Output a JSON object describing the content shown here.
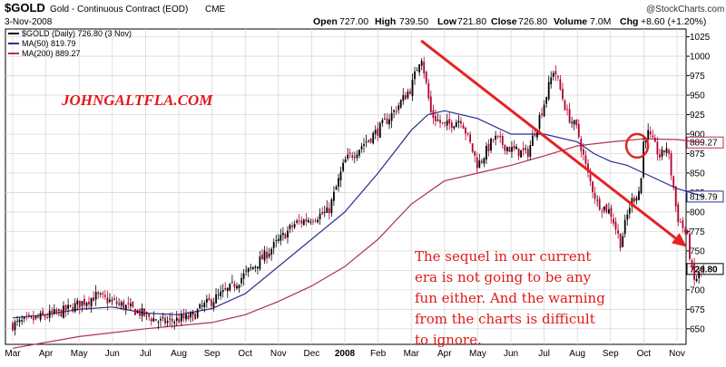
{
  "header": {
    "symbol": "$GOLD",
    "name": "Gold - Continuous Contract (EOD)",
    "exchange": "CME",
    "date": "3-Nov-2008",
    "credit": "@StockCharts.com",
    "ohlc": {
      "open_label": "Open",
      "open": "727.00",
      "high_label": "High",
      "high": "739.50",
      "low_label": "Low",
      "low": "721.80",
      "close_label": "Close",
      "close": "726.80",
      "volume_label": "Volume",
      "volume": "7.0M",
      "chg_label": "Chg",
      "chg": "+8.60 (+1.20%)"
    }
  },
  "legend": [
    {
      "label": "$GOLD (Daily) 726.80 (3 Nov)",
      "color": "#000000"
    },
    {
      "label": "MA(50) 819.79",
      "color": "#2b2f8f"
    },
    {
      "label": "MA(200) 889.27",
      "color": "#b03050"
    }
  ],
  "watermark": "JOHNGALTFLA.COM",
  "annotation": [
    "The sequel in our current",
    "era is not going to be any",
    "fun either. And the warning",
    "from the charts is difficult",
    "to ignore."
  ],
  "colors": {
    "up": "#000000",
    "down": "#b3002d",
    "ma50": "#2b2f8f",
    "ma200": "#b03050",
    "arrow": "#e32222",
    "watermark": "#e21818",
    "annotation": "#e21818",
    "grid": "#d9d9d9"
  },
  "chart_data": {
    "type": "candlestick",
    "title": "$GOLD Gold - Continuous Contract (EOD) CME",
    "ylim": [
      630,
      1035
    ],
    "yticks": [
      650,
      675,
      700,
      725,
      750,
      775,
      800,
      825,
      850,
      875,
      900,
      925,
      950,
      975,
      1000,
      1025
    ],
    "value_tags": [
      "889.27",
      "819.79",
      "726.80"
    ],
    "x_labels": [
      "Mar",
      "Apr",
      "May",
      "Jun",
      "Jul",
      "Aug",
      "Sep",
      "Oct",
      "Nov",
      "Dec",
      "2008",
      "Feb",
      "Mar",
      "Apr",
      "May",
      "Jun",
      "Jul",
      "Aug",
      "Sep",
      "Oct",
      "Nov"
    ],
    "price": [
      [
        0,
        655
      ],
      [
        1.5,
        672
      ],
      [
        2.5,
        692
      ],
      [
        3.5,
        677
      ],
      [
        4.5,
        658
      ],
      [
        5.4,
        665
      ],
      [
        5.7,
        678
      ],
      [
        6.5,
        700
      ],
      [
        7.5,
        740
      ],
      [
        8.5,
        785
      ],
      [
        9.5,
        800
      ],
      [
        10,
        865
      ],
      [
        11,
        905
      ],
      [
        11.5,
        930
      ],
      [
        12,
        960
      ],
      [
        12.3,
        1003
      ],
      [
        12.6,
        925
      ],
      [
        13,
        910
      ],
      [
        13.5,
        920
      ],
      [
        14,
        860
      ],
      [
        14.5,
        895
      ],
      [
        15,
        880
      ],
      [
        15.5,
        875
      ],
      [
        16,
        940
      ],
      [
        16.3,
        985
      ],
      [
        16.7,
        925
      ],
      [
        17,
        905
      ],
      [
        17.3,
        850
      ],
      [
        17.6,
        812
      ],
      [
        18,
        800
      ],
      [
        18.3,
        760
      ],
      [
        18.6,
        812
      ],
      [
        18.9,
        830
      ],
      [
        19,
        895
      ],
      [
        19.1,
        903
      ],
      [
        19.5,
        870
      ],
      [
        19.7,
        885
      ],
      [
        19.9,
        830
      ],
      [
        20,
        795
      ],
      [
        20.3,
        770
      ],
      [
        20.5,
        710
      ],
      [
        20.8,
        727
      ]
    ],
    "ma50": [
      [
        0,
        664
      ],
      [
        1,
        668
      ],
      [
        2,
        675
      ],
      [
        3,
        678
      ],
      [
        4,
        670
      ],
      [
        5,
        668
      ],
      [
        6,
        676
      ],
      [
        7,
        695
      ],
      [
        8,
        730
      ],
      [
        9,
        765
      ],
      [
        10,
        800
      ],
      [
        11,
        850
      ],
      [
        12,
        905
      ],
      [
        12.5,
        925
      ],
      [
        13,
        930
      ],
      [
        14,
        920
      ],
      [
        15,
        900
      ],
      [
        16,
        900
      ],
      [
        17,
        890
      ],
      [
        17.5,
        875
      ],
      [
        18,
        865
      ],
      [
        18.5,
        860
      ],
      [
        19,
        850
      ],
      [
        20,
        830
      ],
      [
        20.8,
        820
      ]
    ],
    "ma200": [
      [
        0,
        625
      ],
      [
        2,
        640
      ],
      [
        4,
        650
      ],
      [
        6,
        658
      ],
      [
        7,
        668
      ],
      [
        8,
        685
      ],
      [
        9,
        705
      ],
      [
        10,
        730
      ],
      [
        11,
        765
      ],
      [
        12,
        810
      ],
      [
        13,
        840
      ],
      [
        14,
        850
      ],
      [
        15,
        860
      ],
      [
        16,
        872
      ],
      [
        17,
        885
      ],
      [
        18,
        890
      ],
      [
        19,
        894
      ],
      [
        20,
        893
      ],
      [
        20.8,
        889
      ]
    ],
    "trend_arrow": {
      "from": [
        12.3,
        1020
      ],
      "to": [
        20.3,
        755
      ]
    },
    "highlight_circle": {
      "center": [
        18.8,
        885
      ]
    },
    "series": [
      {
        "name": "$GOLD (Daily) 726.80 (3 Nov)"
      },
      {
        "name": "MA(50) 819.79"
      },
      {
        "name": "MA(200) 889.27"
      }
    ]
  }
}
